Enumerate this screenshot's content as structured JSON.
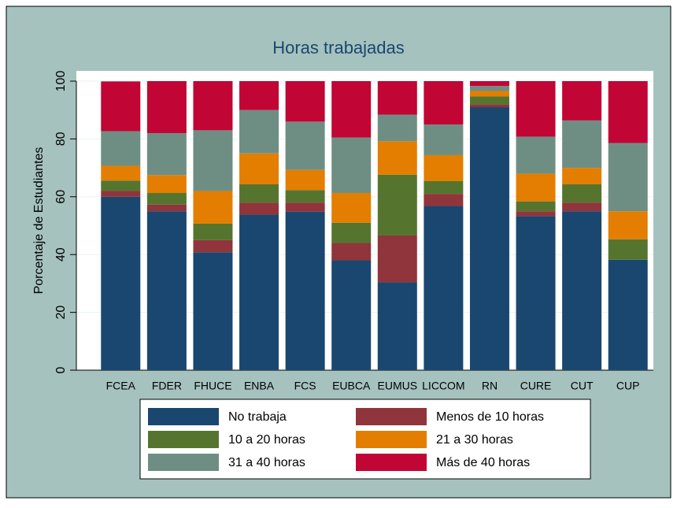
{
  "chart_data": {
    "type": "stacked_bar",
    "title": "Horas trabajadas",
    "y_label": "Porcentaje de Estudiantes",
    "categories": [
      "FCEA",
      "FDER",
      "FHUCE",
      "ENBA",
      "FCS",
      "EUBCA",
      "EUMUS",
      "LICCOM",
      "RN",
      "CURE",
      "CUT",
      "CUP"
    ],
    "series": [
      {
        "name": "No trabaja",
        "color": "#1a476f",
        "values": [
          60,
          55,
          40.8,
          53.8,
          54.8,
          38,
          30.4,
          56.8,
          91,
          53.3,
          55,
          38.2
        ]
      },
      {
        "name": "Menos de 10 horas",
        "color": "#90353b",
        "values": [
          2,
          2.3,
          4.2,
          4.2,
          3.2,
          6,
          16.2,
          4.2,
          1,
          1.7,
          3,
          0
        ]
      },
      {
        "name": "10 a 20 horas",
        "color": "#55752f",
        "values": [
          3.6,
          4,
          5.7,
          6.3,
          4.3,
          7,
          21,
          4.4,
          2.7,
          3.4,
          6.3,
          7.1
        ]
      },
      {
        "name": "21 a 30 horas",
        "color": "#e37e00",
        "values": [
          5.1,
          6.2,
          11.3,
          10.7,
          7,
          10.3,
          11.6,
          9,
          1.9,
          9.6,
          5.7,
          9.7
        ]
      },
      {
        "name": "31 a 40 horas",
        "color": "#6e8e84",
        "values": [
          12,
          14.5,
          21,
          15,
          16.7,
          19.2,
          9.2,
          10.6,
          1.7,
          12.8,
          16.4,
          23.6
        ]
      },
      {
        "name": "Más de 40 horas",
        "color": "#c10534",
        "values": [
          17.2,
          18,
          17,
          10,
          14,
          19.5,
          11.6,
          15,
          1.7,
          19.2,
          13.6,
          21.4
        ]
      }
    ],
    "ylim": [
      0,
      100
    ],
    "yticks": [
      0,
      20,
      40,
      60,
      80,
      100
    ],
    "grid": true,
    "legend_columns": 2
  }
}
